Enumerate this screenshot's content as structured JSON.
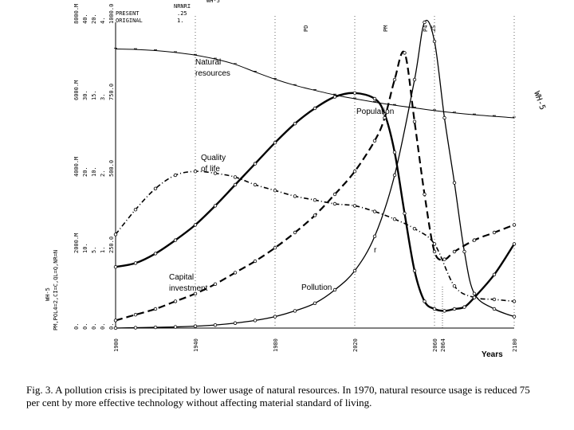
{
  "chart_data": {
    "type": "line",
    "title": "",
    "xlabel": "Years",
    "ylabel": "",
    "x_ticks": [
      "1900",
      "1940",
      "1980",
      "2020",
      "2060",
      "2100"
    ],
    "xlim": [
      1900,
      2100
    ],
    "header": {
      "line1_label": "PRESENT",
      "line1_value": ".25",
      "line2_label": "ORIGINAL",
      "line2_value": "1.",
      "top_label": "NRNRI",
      "run_code": "WH-5",
      "side_code": "WH-5",
      "switch_code": "PM,POL4=2,CI=C,QL=Q,NR=N"
    },
    "markers": [
      "PD",
      "PM",
      "P4",
      "2S"
    ],
    "axes": [
      [
        "0.",
        "0.",
        "0.",
        "0.",
        "0."
      ],
      [
        "2000.M",
        "10.",
        "5.",
        "1.",
        "250.0"
      ],
      [
        "4000.M",
        "20.",
        "10.",
        "2.",
        "500.0"
      ],
      [
        "6000.M",
        "30.",
        "15.",
        "3.",
        "750.0"
      ],
      [
        "8000.M",
        "40.",
        "20.",
        "4.",
        "1000.0"
      ]
    ],
    "series": [
      {
        "name": "Natural resources",
        "x": [
          1900,
          1910,
          1920,
          1930,
          1940,
          1950,
          1960,
          1970,
          1980,
          1990,
          2000,
          2010,
          2020,
          2030,
          2040,
          2050,
          2060,
          2070,
          2080,
          2090,
          2100
        ],
        "values": [
          7.3,
          7.29,
          7.26,
          7.21,
          7.14,
          7.04,
          6.9,
          6.7,
          6.51,
          6.35,
          6.22,
          6.1,
          6.0,
          5.91,
          5.83,
          5.76,
          5.69,
          5.63,
          5.58,
          5.54,
          5.5
        ]
      },
      {
        "name": "Population",
        "x": [
          1900,
          1910,
          1920,
          1930,
          1940,
          1950,
          1960,
          1970,
          1980,
          1990,
          2000,
          2010,
          2020,
          2030,
          2035,
          2040,
          2045,
          2050,
          2055,
          2060,
          2065,
          2070,
          2075,
          2080,
          2090,
          2100
        ],
        "values": [
          1.6,
          1.7,
          1.95,
          2.3,
          2.7,
          3.2,
          3.75,
          4.3,
          4.85,
          5.35,
          5.75,
          6.05,
          6.15,
          6.0,
          5.6,
          4.6,
          3.0,
          1.5,
          0.7,
          0.5,
          0.45,
          0.5,
          0.55,
          0.8,
          1.4,
          2.2
        ]
      },
      {
        "name": "Quality of life",
        "x": [
          1900,
          1910,
          1920,
          1930,
          1940,
          1950,
          1960,
          1970,
          1980,
          1990,
          2000,
          2010,
          2020,
          2030,
          2040,
          2050,
          2060,
          2070,
          2080,
          2090,
          2100
        ],
        "values": [
          2.45,
          3.1,
          3.65,
          4.0,
          4.1,
          4.05,
          3.95,
          3.75,
          3.6,
          3.45,
          3.35,
          3.25,
          3.2,
          3.05,
          2.85,
          2.6,
          2.2,
          1.1,
          0.8,
          0.75,
          0.7
        ]
      },
      {
        "name": "Capital investment",
        "x": [
          1900,
          1910,
          1920,
          1930,
          1940,
          1950,
          1960,
          1970,
          1980,
          1990,
          2000,
          2010,
          2020,
          2030,
          2035,
          2040,
          2045,
          2050,
          2055,
          2060,
          2065,
          2070,
          2080,
          2090,
          2100
        ],
        "values": [
          0.2,
          0.35,
          0.5,
          0.7,
          0.9,
          1.15,
          1.45,
          1.75,
          2.1,
          2.5,
          2.95,
          3.5,
          4.1,
          4.9,
          5.5,
          6.5,
          7.2,
          5.4,
          3.5,
          2.0,
          1.8,
          2.0,
          2.3,
          2.5,
          2.7
        ]
      },
      {
        "name": "Pollution",
        "x": [
          1900,
          1910,
          1920,
          1930,
          1940,
          1950,
          1960,
          1970,
          1980,
          1990,
          2000,
          2010,
          2020,
          2030,
          2040,
          2050,
          2055,
          2060,
          2065,
          2070,
          2075,
          2080,
          2090,
          2100
        ],
        "values": [
          0.0,
          0.01,
          0.02,
          0.03,
          0.05,
          0.08,
          0.13,
          0.2,
          0.3,
          0.45,
          0.65,
          1.0,
          1.5,
          2.4,
          4.0,
          6.5,
          8.0,
          7.5,
          5.5,
          3.8,
          2.0,
          0.9,
          0.5,
          0.3
        ]
      }
    ],
    "labels": {
      "natural_resources": [
        "Natural",
        "resources"
      ],
      "population": "Population",
      "quality_of_life": [
        "Quality",
        "of life"
      ],
      "capital_investment": [
        "Capital",
        "investment"
      ],
      "pollution": "Pollution",
      "years": "Years",
      "r_mark": "r",
      "year_2064": "2064"
    },
    "caption": "Fig. 3. A pollution crisis is precipitated by lower usage of natural resources.  In 1970, natural resource usage is reduced 75 per cent by more effective technology without affecting material standard of living."
  }
}
